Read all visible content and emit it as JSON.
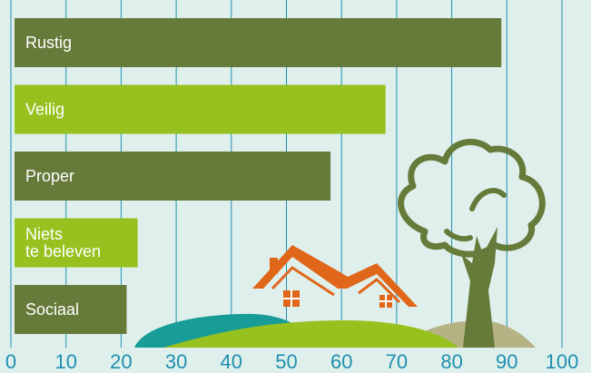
{
  "chart_data": {
    "type": "bar",
    "orientation": "horizontal",
    "categories": [
      [
        "Rustig"
      ],
      [
        "Veilig"
      ],
      [
        "Proper"
      ],
      [
        "Niets",
        "te beleven"
      ],
      [
        "Sociaal"
      ]
    ],
    "values": [
      89,
      68,
      58,
      23,
      21
    ],
    "bar_colors": [
      "#667a3a",
      "#97c11f",
      "#667a3a",
      "#97c11f",
      "#667a3a"
    ],
    "xlim": [
      0,
      100
    ],
    "xticks": [
      0,
      10,
      20,
      30,
      40,
      50,
      60,
      70,
      80,
      90,
      100
    ],
    "grid": true,
    "title": "",
    "xlabel": "",
    "ylabel": ""
  },
  "colors": {
    "background": "#dff0ec",
    "grid": "#1f8fb0",
    "tick_text": "#1f8fb0",
    "roof": "#e0661a",
    "tree": "#667a3a",
    "hill_teal": "#179c98",
    "hill_green": "#97c11f",
    "hill_khaki": "#b5b283"
  },
  "illustration": [
    "house-icon",
    "tree-icon",
    "hills"
  ]
}
